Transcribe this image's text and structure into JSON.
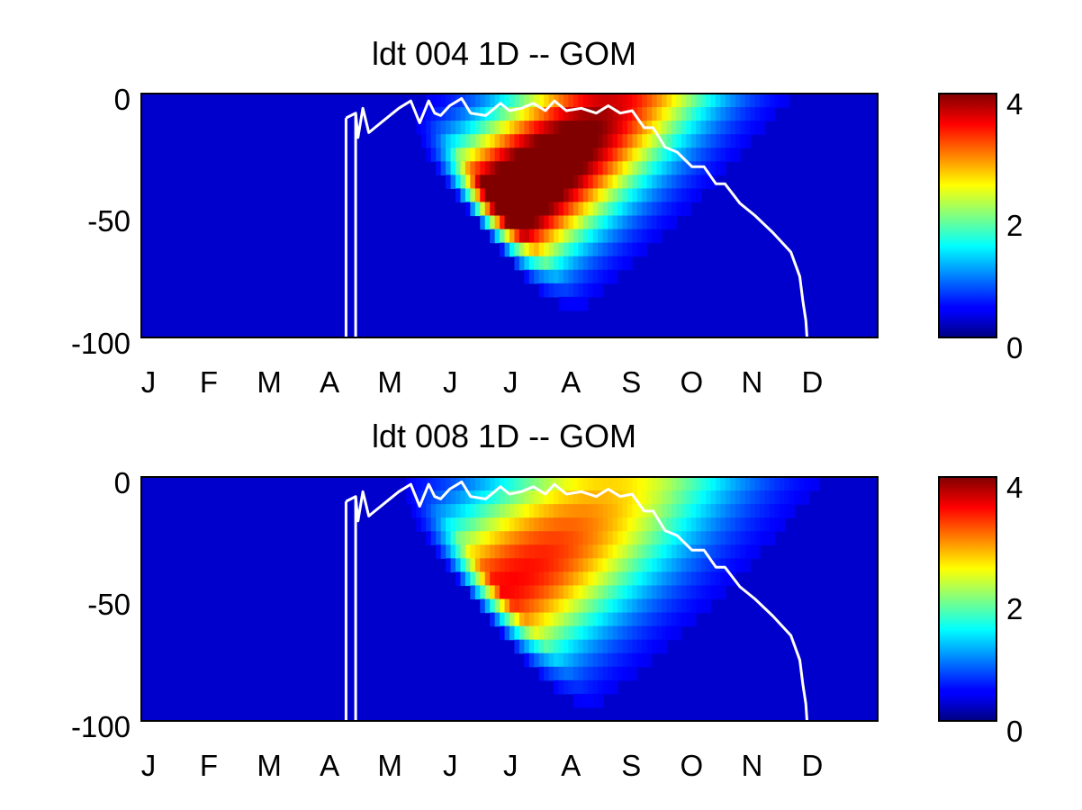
{
  "chart_data": [
    {
      "type": "heatmap",
      "title": "ldt  004 1D   -- GOM",
      "x_tick_labels": [
        "J",
        "F",
        "M",
        "A",
        "M",
        "J",
        "J",
        "A",
        "S",
        "O",
        "N",
        "D"
      ],
      "y_tick_labels": [
        "0",
        "-50",
        "-100"
      ],
      "ylim": [
        -100,
        0
      ],
      "colorbar": {
        "ticks": [
          "4",
          "2",
          "0"
        ],
        "range": [
          0,
          4
        ],
        "colormap": "jet"
      },
      "peak": {
        "center_month": 6.3,
        "slope_m_per_month": -25,
        "max_value": 4.6,
        "spread": 1.2
      },
      "grid": false,
      "mixed_layer_depth_line": {
        "color": "#ffffff",
        "months": [
          3.42,
          3.58,
          3.62,
          3.7,
          3.8,
          3.9,
          4.1,
          4.3,
          4.5,
          4.65,
          4.8,
          4.9,
          5.0,
          5.15,
          5.35,
          5.5,
          5.75,
          5.9,
          6.0,
          6.15,
          6.35,
          6.55,
          6.75,
          6.9,
          7.1,
          7.35,
          7.6,
          7.8,
          8.0,
          8.2,
          8.4,
          8.55,
          8.75,
          8.95,
          9.2,
          9.4,
          9.6,
          9.75,
          10.0,
          10.25,
          10.55,
          10.85,
          11.0,
          11.05,
          11.1,
          11.12
        ],
        "depth_m": [
          -10,
          -8,
          -18,
          -6,
          -16,
          -14,
          -10,
          -6,
          -3,
          -12,
          -3,
          -8,
          -9,
          -5,
          -2,
          -8,
          -9,
          -6,
          -4,
          -7,
          -6,
          -4,
          -7,
          -3,
          -7,
          -6,
          -8,
          -5,
          -8,
          -7,
          -14,
          -14,
          -22,
          -24,
          -30,
          -30,
          -37,
          -37,
          -45,
          -50,
          -57,
          -65,
          -75,
          -85,
          -93,
          -100
        ]
      }
    },
    {
      "type": "heatmap",
      "title": "ldt  008 1D   -- GOM",
      "x_tick_labels": [
        "J",
        "F",
        "M",
        "A",
        "M",
        "J",
        "J",
        "A",
        "S",
        "O",
        "N",
        "D"
      ],
      "y_tick_labels": [
        "0",
        "-50",
        "-100"
      ],
      "ylim": [
        -100,
        0
      ],
      "colorbar": {
        "ticks": [
          "4",
          "2",
          "0"
        ],
        "range": [
          0,
          4
        ],
        "colormap": "jet"
      },
      "peak": {
        "center_month": 6.3,
        "slope_m_per_month": -25,
        "max_value": 3.2,
        "spread": 1.5
      },
      "grid": false,
      "mixed_layer_depth_line": {
        "color": "#ffffff",
        "months": [
          3.42,
          3.58,
          3.62,
          3.7,
          3.8,
          3.9,
          4.1,
          4.3,
          4.5,
          4.65,
          4.8,
          4.9,
          5.0,
          5.15,
          5.35,
          5.5,
          5.75,
          5.9,
          6.0,
          6.15,
          6.35,
          6.55,
          6.75,
          6.9,
          7.1,
          7.35,
          7.6,
          7.8,
          8.0,
          8.2,
          8.4,
          8.55,
          8.75,
          8.95,
          9.2,
          9.4,
          9.6,
          9.75,
          10.0,
          10.25,
          10.55,
          10.85,
          11.0,
          11.05,
          11.1,
          11.12
        ],
        "depth_m": [
          -10,
          -8,
          -18,
          -6,
          -16,
          -14,
          -10,
          -6,
          -3,
          -12,
          -3,
          -8,
          -9,
          -5,
          -2,
          -8,
          -9,
          -6,
          -4,
          -7,
          -6,
          -4,
          -7,
          -3,
          -7,
          -6,
          -8,
          -5,
          -8,
          -7,
          -14,
          -14,
          -22,
          -24,
          -30,
          -30,
          -37,
          -37,
          -45,
          -50,
          -57,
          -65,
          -75,
          -85,
          -93,
          -100
        ]
      }
    }
  ]
}
